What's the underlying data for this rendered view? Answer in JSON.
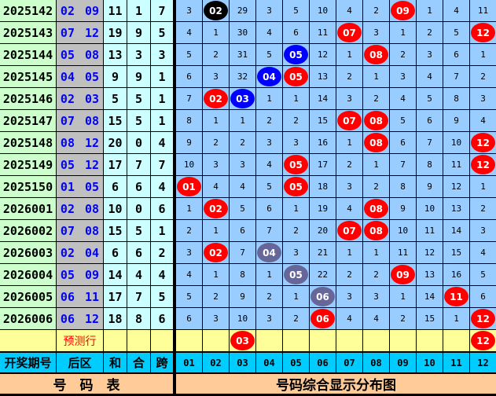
{
  "colors": {
    "red": "#ff0000",
    "blue": "#0000ff",
    "black": "#000000",
    "gray": "#666699"
  },
  "rows": [
    {
      "period": "2025142",
      "back": "02 09",
      "sum": "11",
      "he": "1",
      "kua": "7",
      "dist": [
        "3",
        {
          "n": "02",
          "c": "black"
        },
        "29",
        "3",
        "5",
        "10",
        "4",
        "2",
        {
          "n": "09",
          "c": "red"
        },
        "1",
        "4",
        "11"
      ]
    },
    {
      "period": "2025143",
      "back": "07 12",
      "sum": "19",
      "he": "9",
      "kua": "5",
      "dist": [
        "4",
        "1",
        "30",
        "4",
        "6",
        "11",
        {
          "n": "07",
          "c": "red"
        },
        "3",
        "1",
        "2",
        "5",
        {
          "n": "12",
          "c": "red"
        }
      ]
    },
    {
      "period": "2025144",
      "back": "05 08",
      "sum": "13",
      "he": "3",
      "kua": "3",
      "dist": [
        "5",
        "2",
        "31",
        "5",
        {
          "n": "05",
          "c": "blue"
        },
        "12",
        "1",
        {
          "n": "08",
          "c": "red"
        },
        "2",
        "3",
        "6",
        "1"
      ]
    },
    {
      "period": "2025145",
      "back": "04 05",
      "sum": "9",
      "he": "9",
      "kua": "1",
      "dist": [
        "6",
        "3",
        "32",
        {
          "n": "04",
          "c": "blue"
        },
        {
          "n": "05",
          "c": "red"
        },
        "13",
        "2",
        "1",
        "3",
        "4",
        "7",
        "2"
      ]
    },
    {
      "period": "2025146",
      "back": "02 03",
      "sum": "5",
      "he": "5",
      "kua": "1",
      "dist": [
        "7",
        {
          "n": "02",
          "c": "red"
        },
        {
          "n": "03",
          "c": "blue"
        },
        "1",
        "1",
        "14",
        "3",
        "2",
        "4",
        "5",
        "8",
        "3"
      ]
    },
    {
      "period": "2025147",
      "back": "07 08",
      "sum": "15",
      "he": "5",
      "kua": "1",
      "dist": [
        "8",
        "1",
        "1",
        "2",
        "2",
        "15",
        {
          "n": "07",
          "c": "red"
        },
        {
          "n": "08",
          "c": "red"
        },
        "5",
        "6",
        "9",
        "4"
      ]
    },
    {
      "period": "2025148",
      "back": "08 12",
      "sum": "20",
      "he": "0",
      "kua": "4",
      "dist": [
        "9",
        "2",
        "2",
        "3",
        "3",
        "16",
        "1",
        {
          "n": "08",
          "c": "red"
        },
        "6",
        "7",
        "10",
        {
          "n": "12",
          "c": "red"
        }
      ]
    },
    {
      "period": "2025149",
      "back": "05 12",
      "sum": "17",
      "he": "7",
      "kua": "7",
      "dist": [
        "10",
        "3",
        "3",
        "4",
        {
          "n": "05",
          "c": "red"
        },
        "17",
        "2",
        "1",
        "7",
        "8",
        "11",
        {
          "n": "12",
          "c": "red"
        }
      ]
    },
    {
      "period": "2025150",
      "back": "01 05",
      "sum": "6",
      "he": "6",
      "kua": "4",
      "dist": [
        {
          "n": "01",
          "c": "red"
        },
        "4",
        "4",
        "5",
        {
          "n": "05",
          "c": "red"
        },
        "18",
        "3",
        "2",
        "8",
        "9",
        "12",
        "1"
      ]
    },
    {
      "period": "2026001",
      "back": "02 08",
      "sum": "10",
      "he": "0",
      "kua": "6",
      "dist": [
        "1",
        {
          "n": "02",
          "c": "red"
        },
        "5",
        "6",
        "1",
        "19",
        "4",
        {
          "n": "08",
          "c": "red"
        },
        "9",
        "10",
        "13",
        "2"
      ]
    },
    {
      "period": "2026002",
      "back": "07 08",
      "sum": "15",
      "he": "5",
      "kua": "1",
      "dist": [
        "2",
        "1",
        "6",
        "7",
        "2",
        "20",
        {
          "n": "07",
          "c": "red"
        },
        {
          "n": "08",
          "c": "red"
        },
        "10",
        "11",
        "14",
        "3"
      ]
    },
    {
      "period": "2026003",
      "back": "02 04",
      "sum": "6",
      "he": "6",
      "kua": "2",
      "dist": [
        "3",
        {
          "n": "02",
          "c": "red"
        },
        "7",
        {
          "n": "04",
          "c": "gray"
        },
        "3",
        "21",
        "1",
        "1",
        "11",
        "12",
        "15",
        "4"
      ]
    },
    {
      "period": "2026004",
      "back": "05 09",
      "sum": "14",
      "he": "4",
      "kua": "4",
      "dist": [
        "4",
        "1",
        "8",
        "1",
        {
          "n": "05",
          "c": "gray"
        },
        "22",
        "2",
        "2",
        {
          "n": "09",
          "c": "red"
        },
        "13",
        "16",
        "5"
      ]
    },
    {
      "period": "2026005",
      "back": "06 11",
      "sum": "17",
      "he": "7",
      "kua": "5",
      "dist": [
        "5",
        "2",
        "9",
        "2",
        "1",
        {
          "n": "06",
          "c": "gray"
        },
        "3",
        "3",
        "1",
        "14",
        {
          "n": "11",
          "c": "red"
        },
        "6"
      ]
    },
    {
      "period": "2026006",
      "back": "06 12",
      "sum": "18",
      "he": "8",
      "kua": "6",
      "dist": [
        "6",
        "3",
        "10",
        "3",
        "2",
        {
          "n": "06",
          "c": "red"
        },
        "4",
        "4",
        "2",
        "15",
        "1",
        {
          "n": "12",
          "c": "red"
        }
      ]
    }
  ],
  "forecast": {
    "label": "预测行",
    "dist": [
      "",
      "",
      {
        "n": "03",
        "c": "red"
      },
      "",
      "",
      "",
      "",
      "",
      "",
      "",
      "",
      {
        "n": "12",
        "c": "red"
      }
    ]
  },
  "header": {
    "period": "开奖期号",
    "back": "后区",
    "sum": "和",
    "he": "合",
    "kua": "跨",
    "numbers": [
      "01",
      "02",
      "03",
      "04",
      "05",
      "06",
      "07",
      "08",
      "09",
      "10",
      "11",
      "12"
    ]
  },
  "footer": {
    "left": "号　码　表",
    "right": "号码综合显示分布图"
  }
}
